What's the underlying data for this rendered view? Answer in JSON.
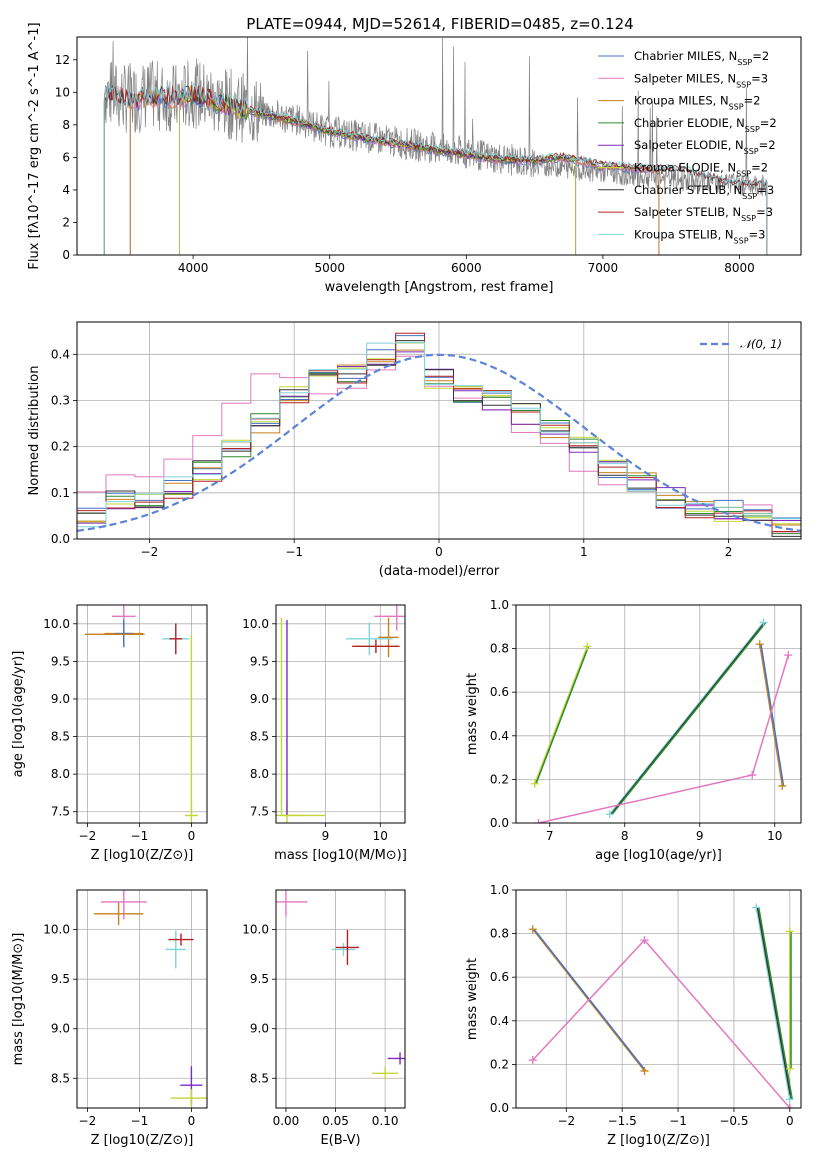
{
  "figure_title": "PLATE=0944, MJD=52614, FIBERID=0485, z=0.124",
  "colors": {
    "Chabrier MILES": "#4472c4",
    "Salpeter MILES": "#e377c2",
    "Kroupa MILES": "#c8811e",
    "Chabrier ELODIE": "#2c8c2c",
    "Salpeter ELODIE": "#7b2cbf",
    "Kroupa ELODIE": "#c4d636",
    "Chabrier STELIB": "#333333",
    "Salpeter STELIB": "#b22222",
    "Kroupa STELIB": "#7fd4dd",
    "data": "#808080",
    "gaussian": "#5b84d6"
  },
  "chart_data": [
    {
      "id": "spectrum",
      "type": "line",
      "title": "PLATE=0944, MJD=52614, FIBERID=0485, z=0.124",
      "xlabel": "wavelength [Angstrom, rest frame]",
      "ylabel": "Flux [fλ10^-17 erg cm^-2 s^-1 A^-1]",
      "xlim": [
        3150,
        8450
      ],
      "ylim": [
        0,
        13.4
      ],
      "xticks": [
        4000,
        5000,
        6000,
        7000,
        8000
      ],
      "yticks": [
        0,
        2,
        4,
        6,
        8,
        10,
        12
      ],
      "grid": false,
      "legend_position": "top-right",
      "legend": [
        "Chabrier MILES, N_SSP=2",
        "Salpeter MILES, N_SSP=3",
        "Kroupa MILES, N_SSP=2",
        "Chabrier ELODIE, N_SSP=2",
        "Salpeter ELODIE, N_SSP=2",
        "Kroupa ELODIE, N_SSP=2",
        "Chabrier STELIB, N_SSP=3",
        "Salpeter STELIB, N_SSP=3",
        "Kroupa STELIB, N_SSP=3"
      ],
      "data_x": [
        3350,
        3500,
        3700,
        3900,
        4000,
        4200,
        4500,
        4800,
        5000,
        5300,
        5600,
        5900,
        6200,
        6500,
        6700,
        7000,
        7300,
        7600,
        7900,
        8200
      ],
      "data_y": [
        10.0,
        9.6,
        9.8,
        9.6,
        10.0,
        9.4,
        8.8,
        8.2,
        7.6,
        7.2,
        6.8,
        6.4,
        6.0,
        5.6,
        5.4,
        5.1,
        4.8,
        4.6,
        4.4,
        4.3
      ],
      "model_y": [
        9.9,
        9.5,
        9.7,
        9.7,
        9.9,
        9.3,
        8.7,
        8.1,
        7.6,
        7.1,
        6.7,
        6.3,
        5.9,
        5.8,
        6.0,
        5.5,
        5.3,
        5.2,
        null,
        null
      ]
    },
    {
      "id": "residuals",
      "type": "line",
      "xlabel": "(data-model)/error",
      "ylabel": "Normed distribution",
      "xlim": [
        -2.5,
        2.5
      ],
      "ylim": [
        0,
        0.47
      ],
      "xticks": [
        -2,
        -1,
        0,
        1,
        2
      ],
      "yticks": [
        0.0,
        0.1,
        0.2,
        0.3,
        0.4
      ],
      "grid": true,
      "legend_position": "top-right",
      "gaussian_label": "𝒩(0, 1)",
      "hist_bin_edges": [
        -2.5,
        -2.3,
        -2.1,
        -1.9,
        -1.7,
        -1.5,
        -1.3,
        -1.1,
        -0.9,
        -0.7,
        -0.5,
        -0.3,
        -0.1,
        0.1,
        0.3,
        0.5,
        0.7,
        0.9,
        1.1,
        1.3,
        1.5,
        1.7,
        1.9,
        2.1,
        2.3,
        2.5
      ],
      "hist_typical": [
        0.05,
        0.08,
        0.09,
        0.11,
        0.15,
        0.2,
        0.25,
        0.31,
        0.35,
        0.36,
        0.4,
        0.43,
        0.35,
        0.32,
        0.3,
        0.27,
        0.24,
        0.2,
        0.15,
        0.12,
        0.09,
        0.07,
        0.06,
        0.04,
        0.03
      ],
      "hist_salpeter": [
        0.11,
        0.13,
        0.12,
        0.16,
        0.22,
        0.28,
        0.35,
        0.37,
        0.33,
        0.33,
        0.36,
        0.4,
        0.33,
        0.3,
        0.26,
        0.24,
        0.21,
        0.17,
        0.13,
        0.1,
        0.08,
        0.06,
        0.05,
        0.05,
        0.03
      ]
    },
    {
      "id": "age_vs_Z",
      "type": "scatter",
      "xlabel": "Z [log10(Z/Z⊙)]",
      "ylabel": "age  [log10(age/yr)]",
      "xlim": [
        -2.2,
        0.3
      ],
      "ylim": [
        7.35,
        10.25
      ],
      "xticks": [
        -2,
        -1,
        0
      ],
      "yticks": [
        7.5,
        8.0,
        8.5,
        9.0,
        9.5,
        10.0
      ],
      "grid": true,
      "points": [
        {
          "series": "Salpeter MILES",
          "x": -1.3,
          "y": 10.1
        },
        {
          "series": "Kroupa MILES",
          "x": -1.3,
          "y": 9.87
        },
        {
          "series": "Chabrier MILES",
          "x": -1.3,
          "y": 9.87
        },
        {
          "series": "Kroupa STELIB",
          "x": -0.3,
          "y": 9.8
        },
        {
          "series": "Salpeter STELIB",
          "x": -0.3,
          "y": 9.8
        },
        {
          "series": "Kroupa ELODIE",
          "x": 0.0,
          "y": 7.45
        }
      ]
    },
    {
      "id": "age_vs_mass",
      "type": "scatter",
      "xlabel": "mass [log10(M/M⊙)]",
      "ylabel": "",
      "xlim": [
        8.1,
        10.45
      ],
      "ylim": [
        7.35,
        10.25
      ],
      "xticks": [
        9,
        10
      ],
      "yticks": [
        7.5,
        8.0,
        8.5,
        9.0,
        9.5,
        10.0
      ],
      "grid": true,
      "points": [
        {
          "series": "Salpeter MILES",
          "x": 10.3,
          "y": 10.1
        },
        {
          "series": "Kroupa MILES",
          "x": 10.15,
          "y": 9.82
        },
        {
          "series": "Kroupa STELIB",
          "x": 9.8,
          "y": 9.8
        },
        {
          "series": "Salpeter STELIB",
          "x": 9.92,
          "y": 9.7
        },
        {
          "series": "Kroupa ELODIE",
          "x": 8.3,
          "y": 7.45
        }
      ]
    },
    {
      "id": "weight_vs_age",
      "type": "line",
      "xlabel": "age  [log10(age/yr)]",
      "ylabel": "mass weight",
      "xlim": [
        6.55,
        10.35
      ],
      "ylim": [
        0,
        1.0
      ],
      "xticks": [
        7,
        8,
        9,
        10
      ],
      "yticks": [
        0.0,
        0.2,
        0.4,
        0.6,
        0.8,
        1.0
      ],
      "grid": true,
      "series": [
        {
          "name": "Kroupa ELODIE",
          "x": [
            6.8,
            7.5
          ],
          "y": [
            0.18,
            0.81
          ]
        },
        {
          "name": "Kroupa STELIB",
          "x": [
            7.8,
            9.85
          ],
          "y": [
            0.04,
            0.92
          ]
        },
        {
          "name": "Kroupa MILES",
          "x": [
            9.8,
            10.1
          ],
          "y": [
            0.82,
            0.17
          ]
        },
        {
          "name": "Salpeter MILES",
          "x": [
            6.85,
            9.7,
            10.18
          ],
          "y": [
            0.0,
            0.22,
            0.77
          ]
        }
      ]
    },
    {
      "id": "mass_vs_Z",
      "type": "scatter",
      "xlabel": "Z [log10(Z/Z⊙)]",
      "ylabel": "mass [log10(M/M⊙)]",
      "xlim": [
        -2.2,
        0.3
      ],
      "ylim": [
        8.2,
        10.4
      ],
      "xticks": [
        -2,
        -1,
        0
      ],
      "yticks": [
        8.5,
        9.0,
        9.5,
        10.0
      ],
      "grid": true,
      "points": [
        {
          "series": "Salpeter MILES",
          "x": -1.3,
          "y": 10.28
        },
        {
          "series": "Kroupa MILES",
          "x": -1.4,
          "y": 10.16
        },
        {
          "series": "Kroupa STELIB",
          "x": -0.3,
          "y": 9.8
        },
        {
          "series": "Salpeter STELIB",
          "x": -0.2,
          "y": 9.9
        },
        {
          "series": "Salpeter ELODIE",
          "x": 0.0,
          "y": 8.43
        },
        {
          "series": "Kroupa ELODIE",
          "x": 0.0,
          "y": 8.3
        }
      ]
    },
    {
      "id": "mass_vs_ebv",
      "type": "scatter",
      "xlabel": "E(B-V)",
      "ylabel": "",
      "xlim": [
        -0.01,
        0.12
      ],
      "ylim": [
        8.2,
        10.4
      ],
      "xticks": [
        0.0,
        0.05,
        0.1
      ],
      "xticklabels": [
        "0.00",
        "0.05",
        "0.10"
      ],
      "yticks": [
        8.5,
        9.0,
        9.5,
        10.0
      ],
      "grid": true,
      "points": [
        {
          "series": "Salpeter MILES",
          "x": 0.0,
          "y": 10.28
        },
        {
          "series": "Kroupa STELIB",
          "x": 0.058,
          "y": 9.8
        },
        {
          "series": "Salpeter STELIB",
          "x": 0.062,
          "y": 9.82
        },
        {
          "series": "Kroupa ELODIE",
          "x": 0.1,
          "y": 8.55
        },
        {
          "series": "Salpeter ELODIE",
          "x": 0.115,
          "y": 8.7
        }
      ]
    },
    {
      "id": "weight_vs_Z",
      "type": "line",
      "xlabel": "Z [log10(Z/Z⊙)]",
      "ylabel": "mass weight",
      "xlim": [
        -2.45,
        0.1
      ],
      "ylim": [
        0,
        1.0
      ],
      "xticks": [
        -2.0,
        -1.5,
        -1.0,
        -0.5,
        0.0
      ],
      "yticks": [
        0.0,
        0.2,
        0.4,
        0.6,
        0.8,
        1.0
      ],
      "grid": true,
      "series": [
        {
          "name": "Kroupa MILES",
          "x": [
            -2.3,
            -1.3
          ],
          "y": [
            0.82,
            0.17
          ]
        },
        {
          "name": "Salpeter MILES",
          "x": [
            -2.3,
            -1.3,
            0.0
          ],
          "y": [
            0.22,
            0.77,
            0.0
          ]
        },
        {
          "name": "Kroupa STELIB",
          "x": [
            -0.3,
            0.0
          ],
          "y": [
            0.92,
            0.04
          ]
        },
        {
          "name": "Kroupa ELODIE",
          "x": [
            0.0,
            0.0
          ],
          "y": [
            0.81,
            0.18
          ]
        }
      ]
    }
  ]
}
